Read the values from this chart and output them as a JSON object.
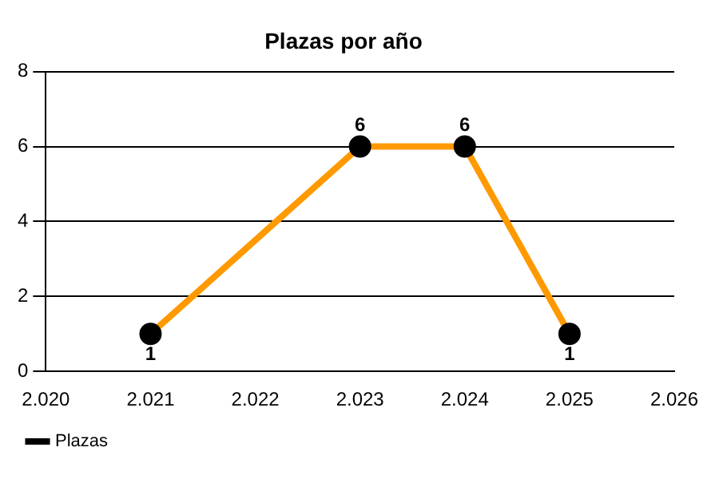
{
  "chart_data": {
    "type": "line",
    "title": "Plazas por año",
    "x": [
      2021,
      2023,
      2024,
      2025
    ],
    "series": [
      {
        "name": "Plazas",
        "color": "#ff9900",
        "values": [
          1,
          6,
          6,
          1
        ]
      }
    ],
    "xlim": [
      2020,
      2026
    ],
    "xticks": [
      {
        "value": 2020,
        "label": "2.020"
      },
      {
        "value": 2021,
        "label": "2.021"
      },
      {
        "value": 2022,
        "label": "2.022"
      },
      {
        "value": 2023,
        "label": "2.023"
      },
      {
        "value": 2024,
        "label": "2.024"
      },
      {
        "value": 2025,
        "label": "2.025"
      },
      {
        "value": 2026,
        "label": "2.026"
      }
    ],
    "ylim": [
      0,
      8
    ],
    "yticks": [
      0,
      2,
      4,
      6,
      8
    ],
    "grid": "y",
    "legend": "bottom left",
    "marker": "circle",
    "line_style": "solid",
    "data_labels": true
  }
}
